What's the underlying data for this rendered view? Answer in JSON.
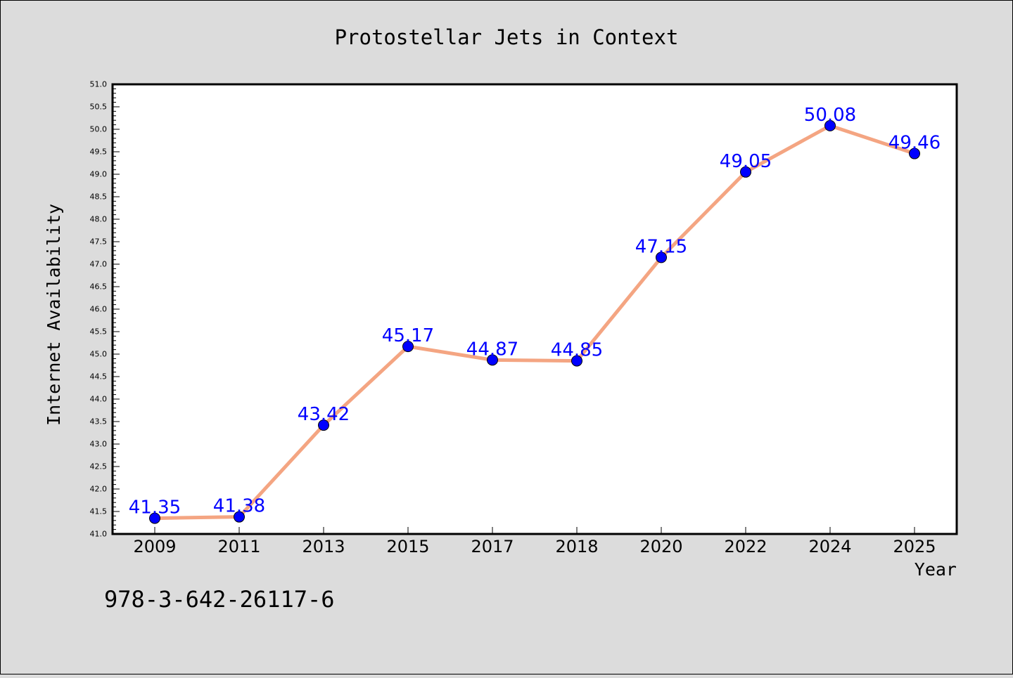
{
  "chart_data": {
    "type": "line",
    "title": "Protostellar Jets in Context",
    "xlabel": "Year",
    "ylabel": "Internet Availability",
    "categories": [
      "2009",
      "2011",
      "2013",
      "2015",
      "2017",
      "2018",
      "2020",
      "2022",
      "2024",
      "2025"
    ],
    "values": [
      41.35,
      41.38,
      43.42,
      45.17,
      44.87,
      44.85,
      47.15,
      49.05,
      50.08,
      49.46
    ],
    "data_labels": [
      "41.35",
      "41.38",
      "43.42",
      "45.17",
      "44.87",
      "44.85",
      "47.15",
      "49.05",
      "50.08",
      "49.46"
    ],
    "ylim": [
      41.0,
      51.0
    ],
    "y_ticks": [
      "41.0",
      "41.5",
      "42.0",
      "42.5",
      "43.0",
      "43.5",
      "44.0",
      "44.5",
      "45.0",
      "45.5",
      "46.0",
      "46.5",
      "47.0",
      "47.5",
      "48.0",
      "48.5",
      "49.0",
      "49.5",
      "50.0",
      "50.5",
      "51.0"
    ],
    "grid": false,
    "legend": "none",
    "colors": {
      "line": "#f4a582",
      "marker": "#0000ff",
      "label": "#0000ff",
      "background": "#dcdcdc",
      "plot_area": "#ffffff"
    }
  },
  "footer_text": "978-3-642-26117-6"
}
